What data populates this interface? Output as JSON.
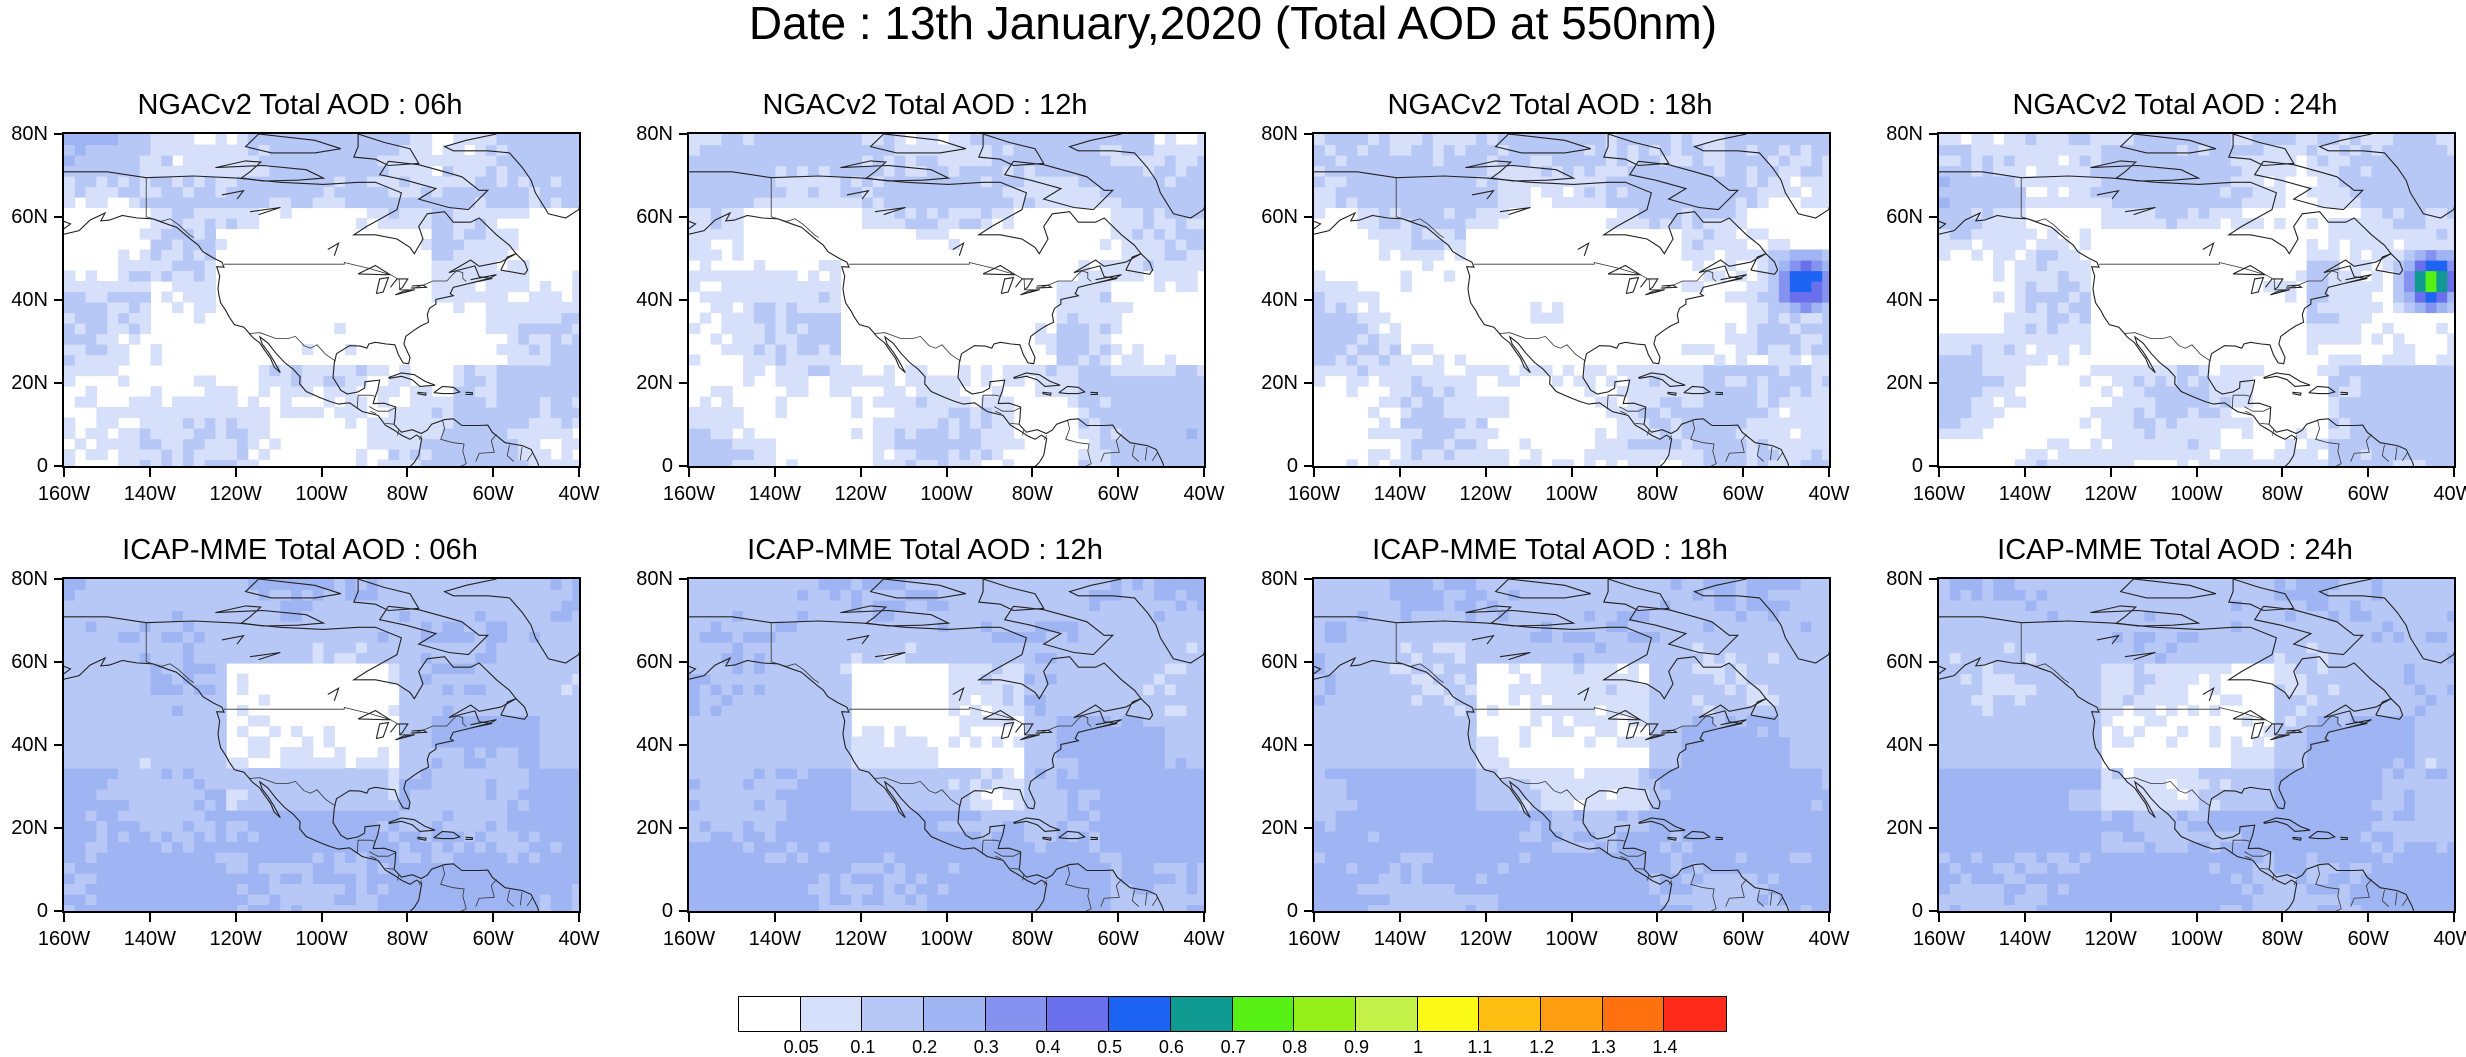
{
  "figure_title": "Date : 13th January,2020 (Total AOD at 550nm)",
  "panel_titles": [
    "NGACv2 Total AOD : 06h",
    "NGACv2 Total AOD : 12h",
    "NGACv2 Total AOD : 18h",
    "NGACv2 Total AOD : 24h",
    "ICAP-MME Total AOD : 06h",
    "ICAP-MME Total AOD : 12h",
    "ICAP-MME Total AOD : 18h",
    "ICAP-MME Total AOD : 24h"
  ],
  "lat_ticks": [
    "80N",
    "60N",
    "40N",
    "20N",
    "0"
  ],
  "lon_ticks": [
    "160W",
    "140W",
    "120W",
    "100W",
    "80W",
    "60W",
    "40W"
  ],
  "map_extent": {
    "lon": [
      -160,
      -40
    ],
    "lat": [
      0,
      80
    ]
  },
  "colorbar": {
    "labels": [
      "0.05",
      "0.1",
      "0.2",
      "0.3",
      "0.4",
      "0.5",
      "0.6",
      "0.7",
      "0.8",
      "0.9",
      "1",
      "1.1",
      "1.2",
      "1.3",
      "1.4"
    ],
    "colors": [
      "#ffffff",
      "#d6e0fb",
      "#b8c8f6",
      "#9fb5f3",
      "#8592ef",
      "#6a70ec",
      "#1e64f2",
      "#0f9a92",
      "#56f015",
      "#95f01a",
      "#c4f249",
      "#fafa16",
      "#ffbe12",
      "#ff9e10",
      "#ff700f",
      "#ff2a1a"
    ]
  }
}
